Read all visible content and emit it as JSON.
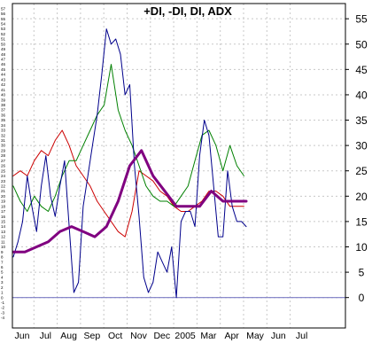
{
  "chart_data": {
    "type": "line",
    "title": "+DI, -DI, DI, ADX",
    "xlabel": "",
    "ylabel": "",
    "ylim": [
      -6,
      58
    ],
    "yticks_right": [
      0,
      5,
      10,
      15,
      20,
      25,
      30,
      35,
      40,
      45,
      50,
      55
    ],
    "yticks_left": [
      -4,
      -3,
      -2,
      -1,
      0,
      1,
      2,
      3,
      4,
      5,
      6,
      7,
      8,
      9,
      10,
      11,
      12,
      13,
      14,
      15,
      16,
      17,
      18,
      19,
      20,
      21,
      22,
      23,
      24,
      25,
      26,
      27,
      28,
      29,
      30,
      31,
      32,
      33,
      34,
      35,
      36,
      37,
      38,
      39,
      40,
      41,
      42,
      43,
      44,
      45,
      46,
      47,
      48,
      49,
      50,
      51,
      52,
      53,
      54,
      55,
      56,
      57
    ],
    "month_labels": [
      "Jun",
      "Jul",
      "Aug",
      "Sep",
      "Oct",
      "Nov",
      "Dec",
      "2005",
      "Mar",
      "Apr",
      "May",
      "Jun",
      "Jul"
    ],
    "grid": true,
    "reference_line": {
      "y": 0,
      "color": "#7b7bc4"
    },
    "series": [
      {
        "color": "#cc0000",
        "x": [
          0,
          0.3,
          0.6,
          0.9,
          1.2,
          1.5,
          1.8,
          2.1,
          2.4,
          2.7,
          3.0,
          3.3,
          3.6,
          3.9,
          4.2,
          4.5,
          4.8,
          5.1,
          5.4,
          5.7,
          6.0,
          6.3,
          6.6,
          6.9,
          7.2,
          7.5,
          7.8,
          8.1,
          8.4,
          8.7,
          9.0,
          9.3,
          9.6,
          9.9
        ],
        "values": [
          24,
          25,
          24,
          27,
          29,
          28,
          31,
          33,
          30,
          26,
          24,
          22,
          19,
          17,
          15,
          13,
          12,
          17,
          25,
          24,
          23,
          21,
          20,
          18,
          17,
          17,
          18,
          19,
          21,
          21,
          20,
          18,
          18,
          18
        ]
      },
      {
        "color": "#008000",
        "x": [
          0,
          0.3,
          0.6,
          0.9,
          1.2,
          1.5,
          1.8,
          2.1,
          2.4,
          2.7,
          3.0,
          3.3,
          3.6,
          3.9,
          4.2,
          4.5,
          4.8,
          5.1,
          5.4,
          5.7,
          6.0,
          6.3,
          6.6,
          6.9,
          7.2,
          7.5,
          7.8,
          8.1,
          8.4,
          8.7,
          9.0,
          9.3,
          9.6,
          9.9
        ],
        "values": [
          22,
          19,
          17,
          20,
          18,
          17,
          20,
          24,
          27,
          27,
          30,
          33,
          36,
          38,
          46,
          37,
          33,
          30,
          26,
          22,
          20,
          19,
          19,
          18,
          20,
          22,
          27,
          32,
          33,
          30,
          25,
          30,
          26,
          24
        ]
      },
      {
        "color": "#00008b",
        "x": [
          0,
          0.2,
          0.4,
          0.6,
          0.8,
          1.0,
          1.2,
          1.4,
          1.6,
          1.8,
          2.0,
          2.2,
          2.4,
          2.6,
          2.8,
          3.0,
          3.2,
          3.4,
          3.6,
          3.8,
          4.0,
          4.2,
          4.4,
          4.6,
          4.8,
          5.0,
          5.2,
          5.4,
          5.6,
          5.8,
          6.0,
          6.2,
          6.4,
          6.6,
          6.8,
          7.0,
          7.2,
          7.4,
          7.6,
          7.8,
          8.0,
          8.2,
          8.4,
          8.6,
          8.8,
          9.0,
          9.2,
          9.4,
          9.6,
          9.8,
          10.0
        ],
        "values": [
          8,
          11,
          15,
          24,
          18,
          13,
          22,
          28,
          20,
          16,
          22,
          27,
          14,
          1,
          3,
          18,
          24,
          30,
          36,
          44,
          53,
          50,
          51,
          48,
          40,
          42,
          26,
          16,
          4,
          1,
          3,
          9,
          7,
          5,
          10,
          0,
          15,
          17,
          17,
          14,
          28,
          35,
          32,
          22,
          12,
          12,
          25,
          18,
          15,
          15,
          14
        ]
      },
      {
        "color": "#800080",
        "x": [
          0,
          0.5,
          1.0,
          1.5,
          2.0,
          2.5,
          3.0,
          3.5,
          4.0,
          4.5,
          5.0,
          5.5,
          6.0,
          6.5,
          7.0,
          7.5,
          8.0,
          8.5,
          9.0,
          9.5,
          10.0
        ],
        "values": [
          9,
          9,
          10,
          11,
          13,
          14,
          13,
          12,
          14,
          19,
          26,
          29,
          24,
          21,
          18,
          18,
          18,
          21,
          19,
          19,
          19
        ]
      }
    ]
  }
}
